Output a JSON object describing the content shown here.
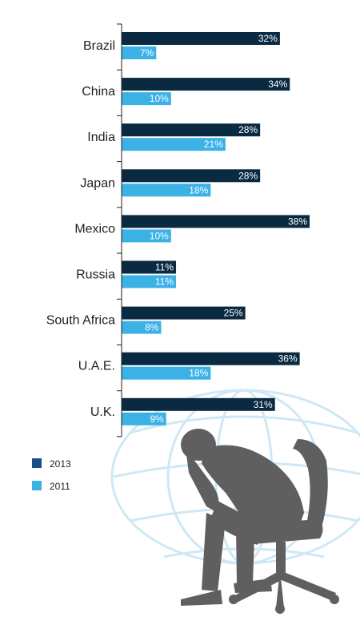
{
  "chart_data": {
    "type": "bar",
    "orientation": "horizontal",
    "categories": [
      "Brazil",
      "China",
      "India",
      "Japan",
      "Mexico",
      "Russia",
      "South Africa",
      "U.A.E.",
      "U.K."
    ],
    "series": [
      {
        "name": "2013",
        "values": [
          32,
          34,
          28,
          28,
          38,
          11,
          25,
          36,
          31
        ],
        "labels": [
          "32%",
          "34%",
          "28%",
          "28%",
          "38%",
          "11%",
          "25%",
          "36%",
          "31%"
        ]
      },
      {
        "name": "2011",
        "values": [
          7,
          10,
          21,
          18,
          10,
          11,
          8,
          18,
          9
        ],
        "labels": [
          "7%",
          "10%",
          "21%",
          "18%",
          "10%",
          "11%",
          "8%",
          "18%",
          "9%"
        ]
      }
    ],
    "xlim": [
      0,
      38
    ],
    "unit": "%",
    "legend_position": "bottom-left",
    "colors": {
      "2013": "#0a2a42",
      "2011": "#3bb1e6",
      "legend_2013": "#1a4f8a",
      "axis": "#222222",
      "silhouette": "#5f5f5f",
      "globe": "#cfe8f5"
    }
  },
  "legend": [
    {
      "label": "2013"
    },
    {
      "label": "2011"
    }
  ],
  "illustration": {
    "icon": "stressed-man-in-chair-icon",
    "background": "globe-grid-icon"
  }
}
